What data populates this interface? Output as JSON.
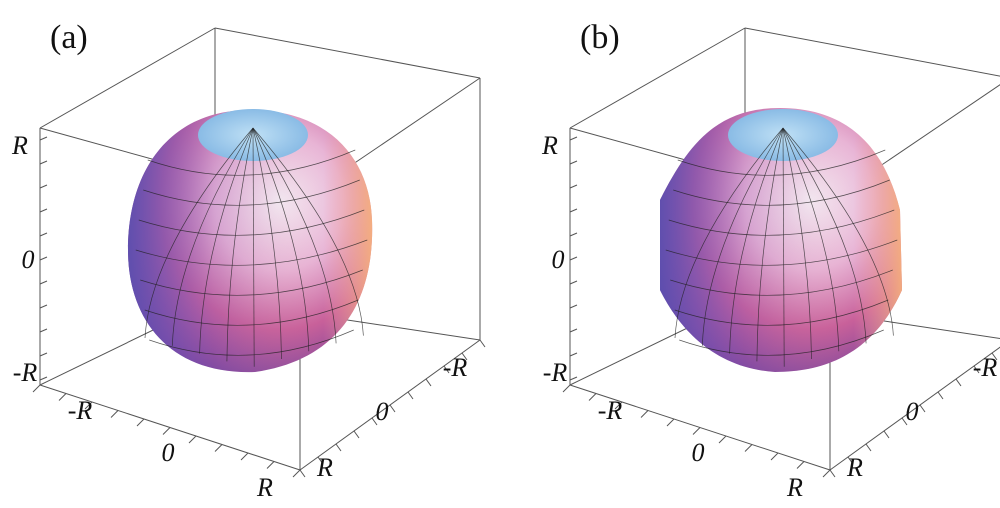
{
  "panels": [
    {
      "label": "(a)",
      "vertical_ticks": [
        "R",
        "0",
        "-R"
      ],
      "front_ticks": [
        "-R",
        "0",
        "R"
      ],
      "side_ticks": [
        "-R",
        "0",
        "R"
      ]
    },
    {
      "label": "(b)",
      "vertical_ticks": [
        "R",
        "0",
        "-R"
      ],
      "front_ticks": [
        "-R",
        "0",
        "R"
      ],
      "side_ticks": [
        "-R",
        "0",
        "R"
      ]
    }
  ]
}
